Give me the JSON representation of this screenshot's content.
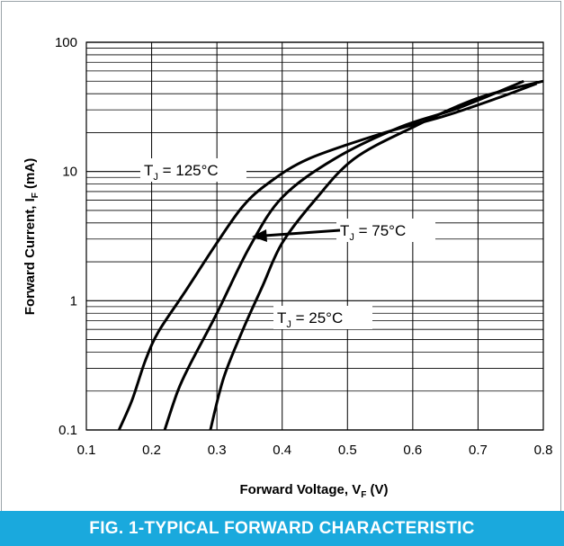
{
  "caption": "FIG. 1-TYPICAL FORWARD CHARACTERISTIC",
  "chart_data": {
    "type": "line",
    "xlabel": "Forward Voltage, V",
    "xlabel_sub": "F",
    "xlabel_unit": " (V)",
    "ylabel": "Forward Current, I",
    "ylabel_sub": "F",
    "ylabel_unit": " (mA)",
    "xlim": [
      0.1,
      0.8
    ],
    "ylim": [
      0.1,
      100
    ],
    "yscale": "log",
    "grid": true,
    "x_ticks": [
      "0.1",
      "0.2",
      "0.3",
      "0.4",
      "0.5",
      "0.6",
      "0.7",
      "0.8"
    ],
    "y_ticks": [
      "0.1",
      "1",
      "10",
      "100"
    ],
    "series": [
      {
        "name": "TJ = 125°C",
        "label_text": "T",
        "label_sub": "J",
        "label_rest": " = 125°C",
        "points": [
          [
            0.15,
            0.1
          ],
          [
            0.17,
            0.17
          ],
          [
            0.19,
            0.34
          ],
          [
            0.21,
            0.57
          ],
          [
            0.25,
            1.15
          ],
          [
            0.3,
            2.8
          ],
          [
            0.34,
            5.4
          ],
          [
            0.38,
            8.2
          ],
          [
            0.44,
            12.5
          ],
          [
            0.55,
            19.5
          ],
          [
            0.65,
            27
          ],
          [
            0.73,
            37
          ],
          [
            0.79,
            48
          ]
        ]
      },
      {
        "name": "TJ = 75°C",
        "label_text": "T",
        "label_sub": "J",
        "label_rest": " = 75°C",
        "points": [
          [
            0.22,
            0.1
          ],
          [
            0.24,
            0.2
          ],
          [
            0.26,
            0.33
          ],
          [
            0.3,
            0.8
          ],
          [
            0.35,
            2.6
          ],
          [
            0.4,
            6.3
          ],
          [
            0.48,
            12.5
          ],
          [
            0.58,
            22
          ],
          [
            0.67,
            31
          ],
          [
            0.77,
            50
          ]
        ]
      },
      {
        "name": "TJ = 25°C",
        "label_text": "T",
        "label_sub": "J",
        "label_rest": " = 25°C",
        "points": [
          [
            0.29,
            0.1
          ],
          [
            0.31,
            0.25
          ],
          [
            0.34,
            0.6
          ],
          [
            0.37,
            1.3
          ],
          [
            0.4,
            2.8
          ],
          [
            0.45,
            6.0
          ],
          [
            0.51,
            12.5
          ],
          [
            0.6,
            22
          ],
          [
            0.7,
            37
          ],
          [
            0.8,
            50
          ]
        ]
      }
    ]
  }
}
